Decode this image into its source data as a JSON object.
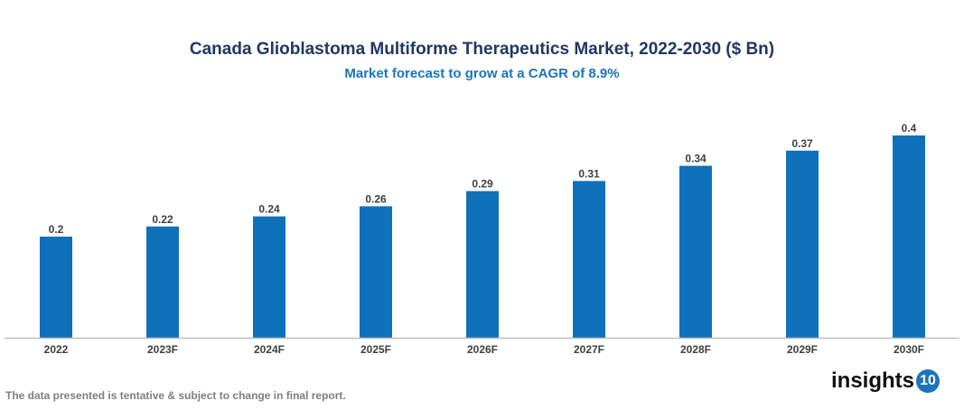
{
  "chart_data": {
    "type": "bar",
    "title": "Canada Glioblastoma Multiforme Therapeutics Market, 2022-2030 ($ Bn)",
    "subtitle": "Market forecast to grow at a CAGR of 8.9%",
    "categories": [
      "2022",
      "2023F",
      "2024F",
      "2025F",
      "2026F",
      "2027F",
      "2028F",
      "2029F",
      "2030F"
    ],
    "values": [
      0.2,
      0.22,
      0.24,
      0.26,
      0.29,
      0.31,
      0.34,
      0.37,
      0.4
    ],
    "ylim": [
      0,
      0.4
    ],
    "grid": false,
    "bar_color": "#1071bb"
  },
  "footer": {
    "note": "The data presented is tentative & subject to change in final report.",
    "logo_text": "insights",
    "logo_badge": "10"
  }
}
